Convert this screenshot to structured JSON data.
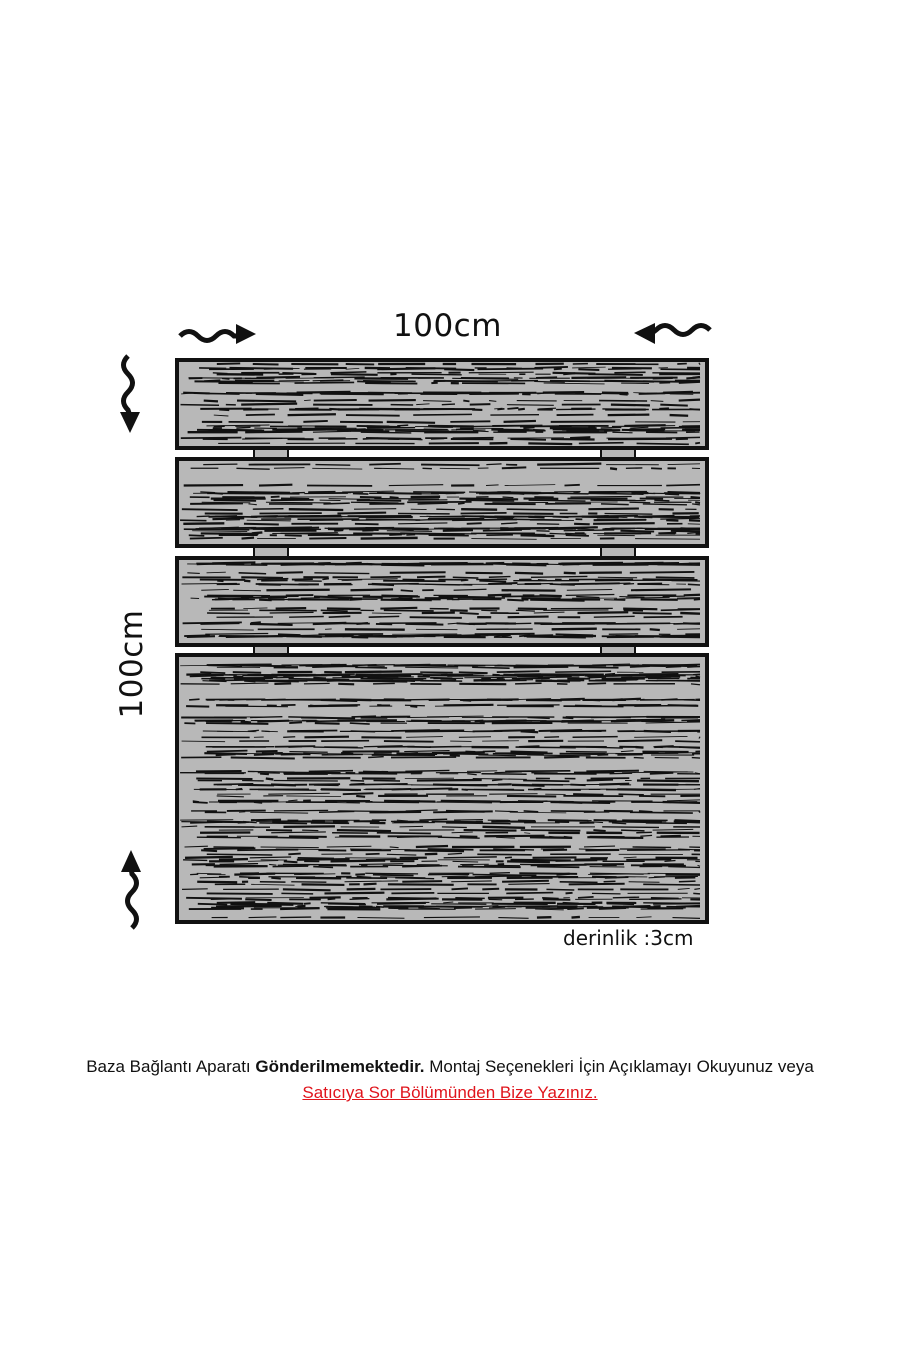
{
  "dimensions": {
    "width_label": "100cm",
    "height_label": "100cm",
    "depth_label": "derinlik :3cm"
  },
  "planks": 4,
  "colors": {
    "wood": "#b8b8b8",
    "grain": "#111111",
    "link": "#e0141c"
  },
  "notice": {
    "part1": "Baza Bağlantı Aparatı ",
    "bold": "Gönderilmemektedir.",
    "part2": " Montaj Seçenekleri İçin Açıklamayı Okuyunuz veya",
    "link": "Satıcıya Sor Bölümünden Bize Yazınız."
  }
}
